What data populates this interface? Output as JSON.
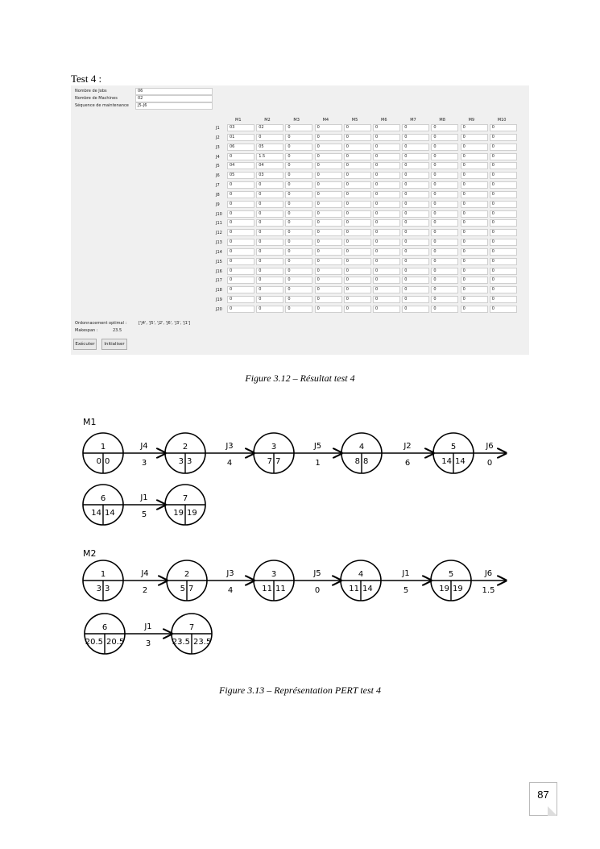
{
  "heading": "Test 4 :",
  "form": {
    "fields": [
      {
        "label": "Nombre de Jobs",
        "value": "06"
      },
      {
        "label": "Nombre de Machines",
        "value": "02"
      },
      {
        "label": "Séquence de maintenance",
        "value": "J5-J6"
      }
    ]
  },
  "table": {
    "columns": [
      "M1",
      "M2",
      "M3",
      "M4",
      "M5",
      "M6",
      "M7",
      "M8",
      "M9",
      "M10"
    ],
    "rows": [
      {
        "job": "J1",
        "values": [
          "03",
          "02",
          "0",
          "0",
          "0",
          "0",
          "0",
          "0",
          "0",
          "0"
        ]
      },
      {
        "job": "J2",
        "values": [
          "01",
          "0",
          "0",
          "0",
          "0",
          "0",
          "0",
          "0",
          "0",
          "0"
        ]
      },
      {
        "job": "J3",
        "values": [
          "06",
          "05",
          "0",
          "0",
          "0",
          "0",
          "0",
          "0",
          "0",
          "0"
        ]
      },
      {
        "job": "J4",
        "values": [
          "0",
          "1.5",
          "0",
          "0",
          "0",
          "0",
          "0",
          "0",
          "0",
          "0"
        ]
      },
      {
        "job": "J5",
        "values": [
          "04",
          "04",
          "0",
          "0",
          "0",
          "0",
          "0",
          "0",
          "0",
          "0"
        ]
      },
      {
        "job": "J6",
        "values": [
          "05",
          "03",
          "0",
          "0",
          "0",
          "0",
          "0",
          "0",
          "0",
          "0"
        ]
      },
      {
        "job": "J7",
        "values": [
          "0",
          "0",
          "0",
          "0",
          "0",
          "0",
          "0",
          "0",
          "0",
          "0"
        ]
      },
      {
        "job": "J8",
        "values": [
          "0",
          "0",
          "0",
          "0",
          "0",
          "0",
          "0",
          "0",
          "0",
          "0"
        ]
      },
      {
        "job": "J9",
        "values": [
          "0",
          "0",
          "0",
          "0",
          "0",
          "0",
          "0",
          "0",
          "0",
          "0"
        ]
      },
      {
        "job": "J10",
        "values": [
          "0",
          "0",
          "0",
          "0",
          "0",
          "0",
          "0",
          "0",
          "0",
          "0"
        ]
      },
      {
        "job": "J11",
        "values": [
          "0",
          "0",
          "0",
          "0",
          "0",
          "0",
          "0",
          "0",
          "0",
          "0"
        ]
      },
      {
        "job": "J12",
        "values": [
          "0",
          "0",
          "0",
          "0",
          "0",
          "0",
          "0",
          "0",
          "0",
          "0"
        ]
      },
      {
        "job": "J13",
        "values": [
          "0",
          "0",
          "0",
          "0",
          "0",
          "0",
          "0",
          "0",
          "0",
          "0"
        ]
      },
      {
        "job": "J14",
        "values": [
          "0",
          "0",
          "0",
          "0",
          "0",
          "0",
          "0",
          "0",
          "0",
          "0"
        ]
      },
      {
        "job": "J15",
        "values": [
          "0",
          "0",
          "0",
          "0",
          "0",
          "0",
          "0",
          "0",
          "0",
          "0"
        ]
      },
      {
        "job": "J16",
        "values": [
          "0",
          "0",
          "0",
          "0",
          "0",
          "0",
          "0",
          "0",
          "0",
          "0"
        ]
      },
      {
        "job": "J17",
        "values": [
          "0",
          "0",
          "0",
          "0",
          "0",
          "0",
          "0",
          "0",
          "0",
          "0"
        ]
      },
      {
        "job": "J18",
        "values": [
          "0",
          "0",
          "0",
          "0",
          "0",
          "0",
          "0",
          "0",
          "0",
          "0"
        ]
      },
      {
        "job": "J19",
        "values": [
          "0",
          "0",
          "0",
          "0",
          "0",
          "0",
          "0",
          "0",
          "0",
          "0"
        ]
      },
      {
        "job": "J20",
        "values": [
          "0",
          "0",
          "0",
          "0",
          "0",
          "0",
          "0",
          "0",
          "0",
          "0"
        ]
      }
    ]
  },
  "result": {
    "sequence_label": "Ordonnacement optimal :",
    "sequence_value": "['J4', 'J5', 'J2', 'J6', 'J3', 'J1']",
    "makespan_label": "Makespan :",
    "makespan_value": "23.5"
  },
  "buttons": {
    "execute": "Exécuter",
    "reset": "Initialiser"
  },
  "caption1": "Figure 3.12 – Résultat test 4",
  "pert": [
    {
      "machine": "M1",
      "nodes": [
        {
          "id": "1",
          "a": "0",
          "b": "0"
        },
        {
          "id": "2",
          "a": "3",
          "b": "3"
        },
        {
          "id": "3",
          "a": "7",
          "b": "7"
        },
        {
          "id": "4",
          "a": "8",
          "b": "8"
        },
        {
          "id": "5",
          "a": "14",
          "b": "14"
        },
        {
          "id": "6",
          "a": "14",
          "b": "14"
        },
        {
          "id": "7",
          "a": "19",
          "b": "19"
        }
      ],
      "arcs": [
        {
          "job": "J4",
          "d": "3"
        },
        {
          "job": "J3",
          "d": "4"
        },
        {
          "job": "J5",
          "d": "1"
        },
        {
          "job": "J2",
          "d": "6"
        },
        {
          "job": "J6",
          "d": "0"
        },
        {
          "job": "J1",
          "d": "5"
        }
      ]
    },
    {
      "machine": "M2",
      "nodes": [
        {
          "id": "1",
          "a": "3",
          "b": "3"
        },
        {
          "id": "2",
          "a": "5",
          "b": "7"
        },
        {
          "id": "3",
          "a": "11",
          "b": "11"
        },
        {
          "id": "4",
          "a": "11",
          "b": "14"
        },
        {
          "id": "5",
          "a": "19",
          "b": "19"
        },
        {
          "id": "6",
          "a": "20.5",
          "b": "20.5"
        },
        {
          "id": "7",
          "a": "23.5",
          "b": "23.5"
        }
      ],
      "arcs": [
        {
          "job": "J4",
          "d": "2"
        },
        {
          "job": "J3",
          "d": "4"
        },
        {
          "job": "J5",
          "d": "0"
        },
        {
          "job": "J1",
          "d": "5"
        },
        {
          "job": "J6",
          "d": "1.5"
        },
        {
          "job": "J1",
          "d": "3"
        }
      ]
    }
  ],
  "caption2": "Figure 3.13 – Représentation PERT test 4",
  "page_number": "87"
}
